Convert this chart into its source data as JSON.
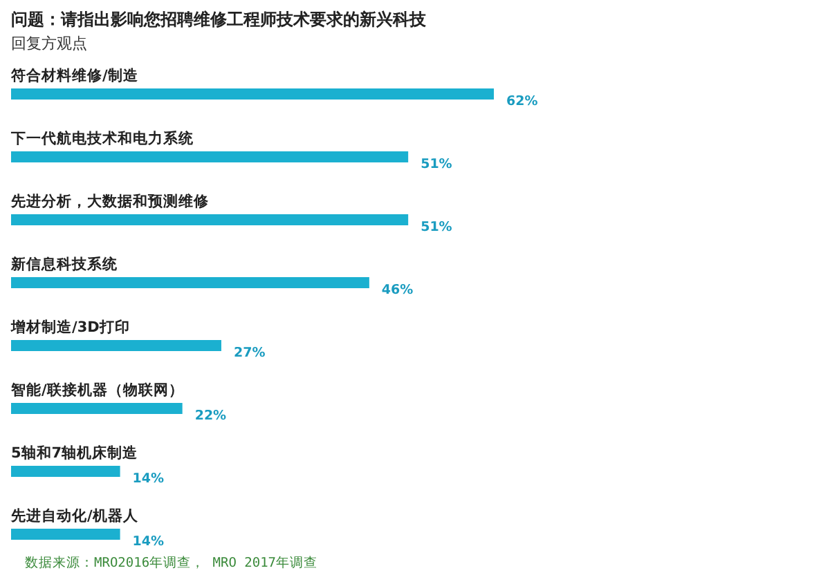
{
  "chart_data": {
    "type": "bar",
    "orientation": "horizontal",
    "title": "问题：请指出影响您招聘维修工程师技术要求的新兴科技",
    "subtitle": "回复方观点",
    "categories": [
      "符合材料维修/制造",
      "下一代航电技术和电力系统",
      "先进分析，大数据和预测维修",
      "新信息科技系统",
      "增材制造/3D打印",
      "智能/联接机器（物联网）",
      "5轴和7轴机床制造",
      "先进自动化/机器人"
    ],
    "values": [
      62,
      51,
      51,
      46,
      27,
      22,
      14,
      14
    ],
    "value_labels": [
      "62%",
      "51%",
      "51%",
      "46%",
      "27%",
      "22%",
      "14%",
      "14%"
    ],
    "color": "#1bb0d0",
    "annotations": [
      "数据来源：MRO2016年调查， MRO 2017年调查"
    ]
  }
}
